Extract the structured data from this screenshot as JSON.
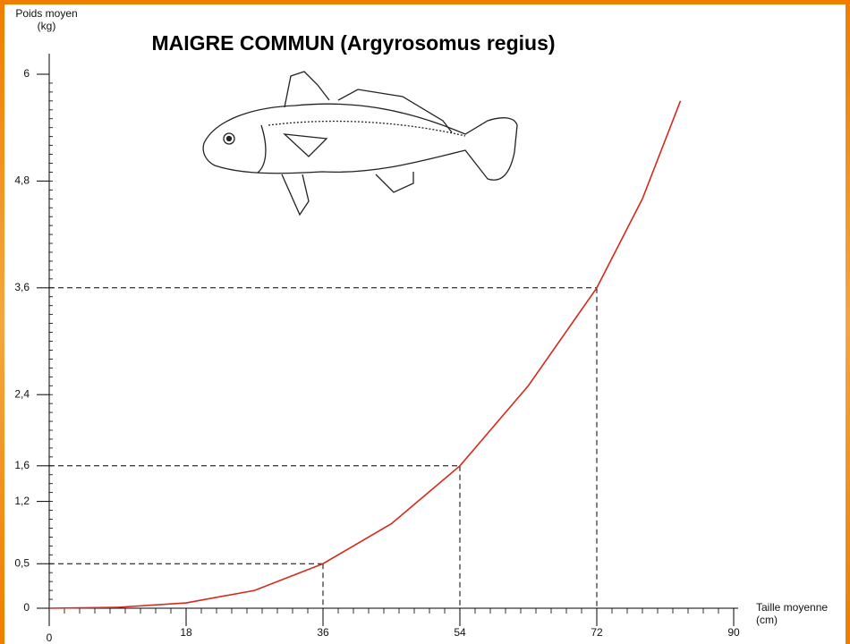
{
  "chart_data": {
    "type": "line",
    "title": "MAIGRE COMMUN (Argyrosomus regius)",
    "ylabel": [
      "Poids moyen",
      "(kg)"
    ],
    "xlabel": [
      "Taille moyenne",
      "(cm)"
    ],
    "series": [
      {
        "color": "#d42a1c",
        "x": [
          0,
          9,
          18,
          27,
          36,
          45,
          54,
          63,
          72,
          78,
          83
        ],
        "values": [
          0,
          0.01,
          0.06,
          0.2,
          0.5,
          0.95,
          1.6,
          2.5,
          3.6,
          4.6,
          5.7
        ]
      }
    ],
    "xlim": [
      0,
      90
    ],
    "xticks": [
      0,
      18,
      36,
      54,
      72,
      90
    ],
    "ylim": [
      0,
      6
    ],
    "yticks": [
      0,
      {
        "value": 0.5,
        "label": "0,5"
      },
      {
        "value": 1.2,
        "label": "1,2"
      },
      {
        "value": 1.6,
        "label": "1,6"
      },
      {
        "value": 2.4,
        "label": "2,4"
      },
      {
        "value": 3.6,
        "label": "3,6"
      },
      {
        "value": 4.8,
        "label": "4,8"
      },
      6
    ],
    "x_minor_step": 2,
    "y_minor_step": 0.1
  }
}
